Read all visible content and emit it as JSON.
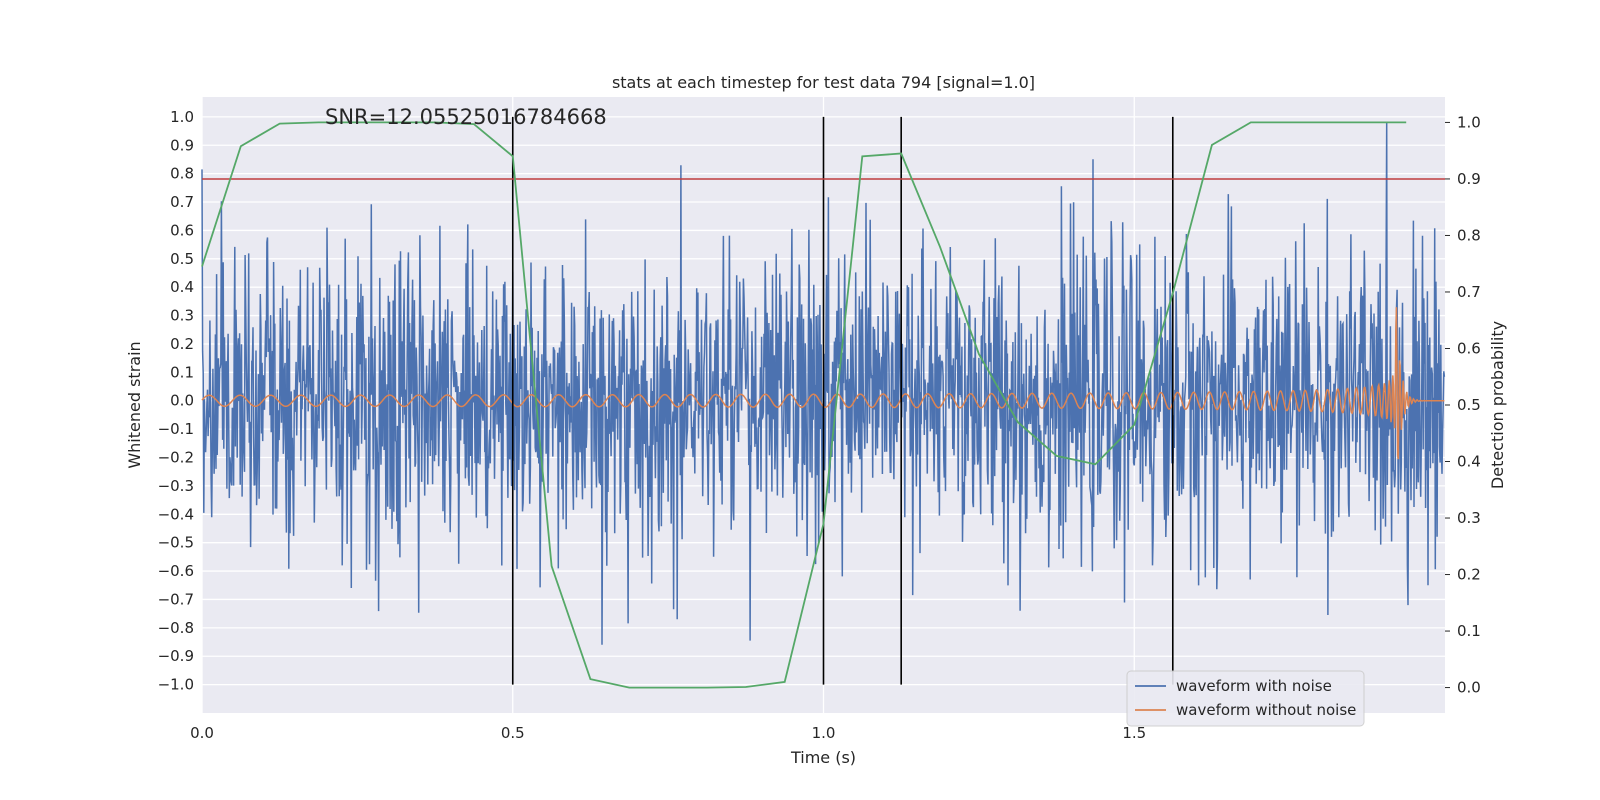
{
  "chart_data": {
    "type": "line",
    "title": "stats at each timestep for test data 794 [signal=1.0]",
    "annotation": "SNR=12.05525016784668",
    "xlabel": "Time (s)",
    "ylabel": "Whitened strain",
    "ylabel_right": "Detection probability",
    "xlim": [
      0.0,
      2.0
    ],
    "ylim": [
      -1.1,
      1.07
    ],
    "ylim_right": [
      -0.045,
      1.045
    ],
    "x_ticks": [
      0.0,
      0.5,
      1.0,
      1.5
    ],
    "x_tick_labels": [
      "0.0",
      "0.5",
      "1.0",
      "1.5"
    ],
    "y_ticks": [
      -1.0,
      -0.9,
      -0.8,
      -0.7,
      -0.6,
      -0.5,
      -0.4,
      -0.3,
      -0.2,
      -0.1,
      0.0,
      0.1,
      0.2,
      0.3,
      0.4,
      0.5,
      0.6,
      0.7,
      0.8,
      0.9,
      1.0
    ],
    "y_tick_labels": [
      "−1.0",
      "−0.9",
      "−0.8",
      "−0.7",
      "−0.6",
      "−0.5",
      "−0.4",
      "−0.3",
      "−0.2",
      "−0.1",
      "0.0",
      "0.1",
      "0.2",
      "0.3",
      "0.4",
      "0.5",
      "0.6",
      "0.7",
      "0.8",
      "0.9",
      "1.0"
    ],
    "y_ticks_right": [
      0.0,
      0.1,
      0.2,
      0.3,
      0.4,
      0.5,
      0.6,
      0.7,
      0.8,
      0.9,
      1.0
    ],
    "y_tick_labels_right": [
      "0.0",
      "0.1",
      "0.2",
      "0.3",
      "0.4",
      "0.5",
      "0.6",
      "0.7",
      "0.8",
      "0.9",
      "1.0"
    ],
    "grid": true,
    "legend_position": "bottom-right",
    "threshold": {
      "value": 0.9,
      "axis": "right",
      "color": "#c03d3e"
    },
    "vertical_markers": [
      0.5,
      1.0,
      1.125,
      1.562
    ],
    "series": [
      {
        "name": "waveform with noise",
        "axis": "left",
        "color": "#4c72b0",
        "x_range": [
          0.0,
          2.0
        ],
        "samples": 2048,
        "description_amplitude": 0.35
      },
      {
        "name": "waveform without noise",
        "axis": "left",
        "color": "#dd8452",
        "x_range": [
          0.0,
          2.0
        ],
        "chirp": {
          "f_start": 20,
          "f_end": 180,
          "amp_start": 0.035,
          "amp_peak": 0.44,
          "merger_time": 1.92
        }
      },
      {
        "name": "",
        "axis": "right",
        "color": "#55a868",
        "x": [
          0.0,
          0.0625,
          0.125,
          0.1875,
          0.25,
          0.3125,
          0.375,
          0.4375,
          0.5,
          0.5625,
          0.625,
          0.6875,
          0.75,
          0.8125,
          0.875,
          0.9375,
          1.0,
          1.0625,
          1.125,
          1.1875,
          1.25,
          1.3125,
          1.375,
          1.4375,
          1.5,
          1.5625,
          1.625,
          1.6875,
          1.75,
          1.8125,
          1.875,
          1.9375
        ],
        "y": [
          0.745,
          0.958,
          0.998,
          1.0,
          1.0,
          1.0,
          1.0,
          0.997,
          0.94,
          0.215,
          0.015,
          0.0,
          0.0,
          0.0,
          0.001,
          0.01,
          0.29,
          0.94,
          0.945,
          0.78,
          0.59,
          0.47,
          0.41,
          0.395,
          0.465,
          0.7,
          0.96,
          1.0,
          1.0,
          1.0,
          1.0,
          1.0
        ]
      }
    ]
  }
}
